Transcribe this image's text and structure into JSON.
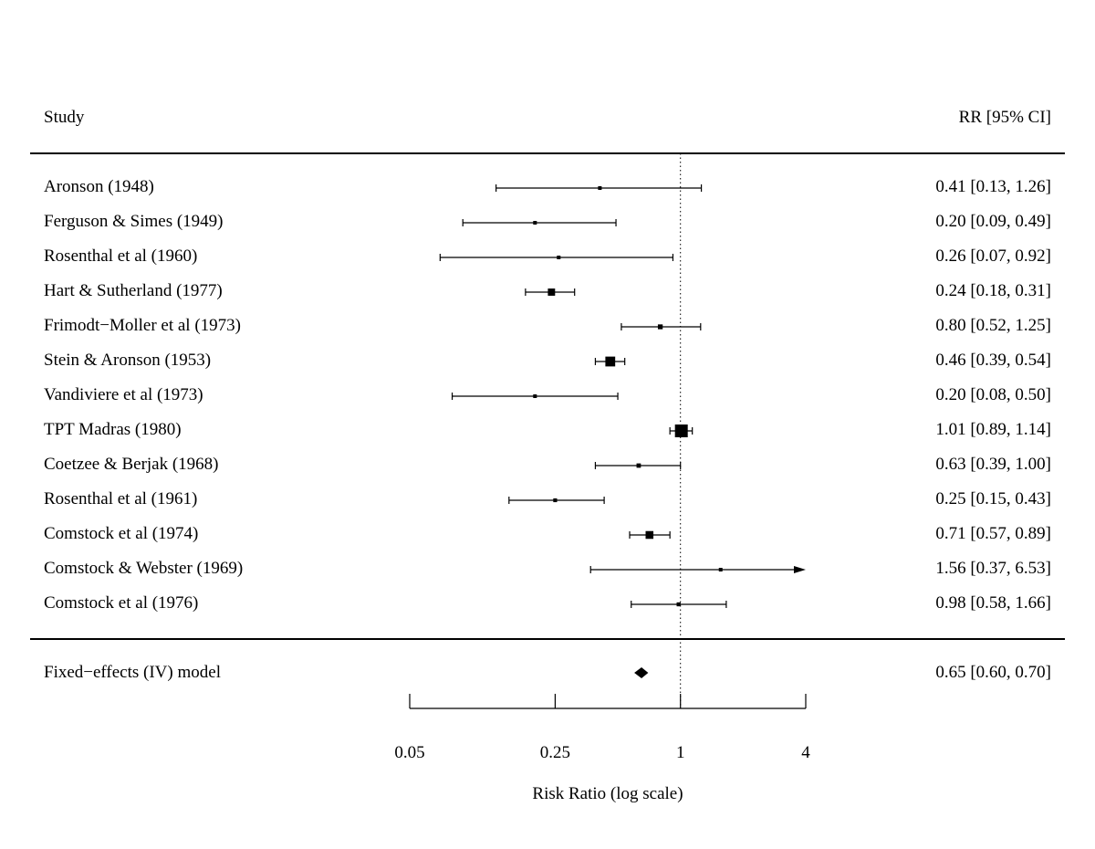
{
  "chart_data": {
    "type": "forest",
    "header": {
      "study": "Study",
      "estimate": "RR [95% CI]"
    },
    "xlabel": "Risk Ratio (log scale)",
    "scale": "log",
    "xlim": [
      0.05,
      4
    ],
    "ticks": [
      {
        "value": 0.05,
        "label": "0.05"
      },
      {
        "value": 0.25,
        "label": "0.25"
      },
      {
        "value": 1,
        "label": "1"
      },
      {
        "value": 4,
        "label": "4"
      }
    ],
    "reference_line": 1,
    "studies": [
      {
        "label": "Aronson (1948)",
        "rr": 0.41,
        "lo": 0.13,
        "hi": 1.26,
        "weight": 1.3,
        "text": "0.41 [0.13, 1.26]"
      },
      {
        "label": "Ferguson & Simes (1949)",
        "rr": 0.2,
        "lo": 0.09,
        "hi": 0.49,
        "weight": 2.2,
        "text": "0.20 [0.09, 0.49]"
      },
      {
        "label": "Rosenthal et al (1960)",
        "rr": 0.26,
        "lo": 0.07,
        "hi": 0.92,
        "weight": 0.9,
        "text": "0.26 [0.07, 0.92]"
      },
      {
        "label": "Hart & Sutherland (1977)",
        "rr": 0.24,
        "lo": 0.18,
        "hi": 0.31,
        "weight": 11.5,
        "text": "0.24 [0.18, 0.31]"
      },
      {
        "label": "Frimodt−Moller et al (1973)",
        "rr": 0.8,
        "lo": 0.52,
        "hi": 1.25,
        "weight": 5.2,
        "text": "0.80 [0.52, 1.25]"
      },
      {
        "label": "Stein & Aronson (1953)",
        "rr": 0.46,
        "lo": 0.39,
        "hi": 0.54,
        "weight": 21.5,
        "text": "0.46 [0.39, 0.54]"
      },
      {
        "label": "Vandiviere et al (1973)",
        "rr": 0.2,
        "lo": 0.08,
        "hi": 0.5,
        "weight": 1.8,
        "text": "0.20 [0.08, 0.50]"
      },
      {
        "label": "TPT Madras (1980)",
        "rr": 1.01,
        "lo": 0.89,
        "hi": 1.14,
        "weight": 36.3,
        "text": "1.01 [0.89, 1.14]"
      },
      {
        "label": "Coetzee & Berjak (1968)",
        "rr": 0.63,
        "lo": 0.39,
        "hi": 1.0,
        "weight": 4.2,
        "text": "0.63 [0.39, 1.00]"
      },
      {
        "label": "Rosenthal et al (1961)",
        "rr": 0.25,
        "lo": 0.15,
        "hi": 0.43,
        "weight": 3.2,
        "text": "0.25 [0.15, 0.43]"
      },
      {
        "label": "Comstock et al (1974)",
        "rr": 0.71,
        "lo": 0.57,
        "hi": 0.89,
        "weight": 13.5,
        "text": "0.71 [0.57, 0.89]"
      },
      {
        "label": "Comstock & Webster (1969)",
        "rr": 1.56,
        "lo": 0.37,
        "hi": 6.53,
        "weight": 0.6,
        "text": "1.56 [0.37, 6.53]"
      },
      {
        "label": "Comstock et al (1976)",
        "rr": 0.98,
        "lo": 0.58,
        "hi": 1.66,
        "weight": 3.5,
        "text": "0.98 [0.58, 1.66]"
      }
    ],
    "summary": {
      "label": "Fixed−effects (IV) model",
      "rr": 0.65,
      "lo": 0.6,
      "hi": 0.7,
      "text": "0.65 [0.60, 0.70]"
    }
  }
}
